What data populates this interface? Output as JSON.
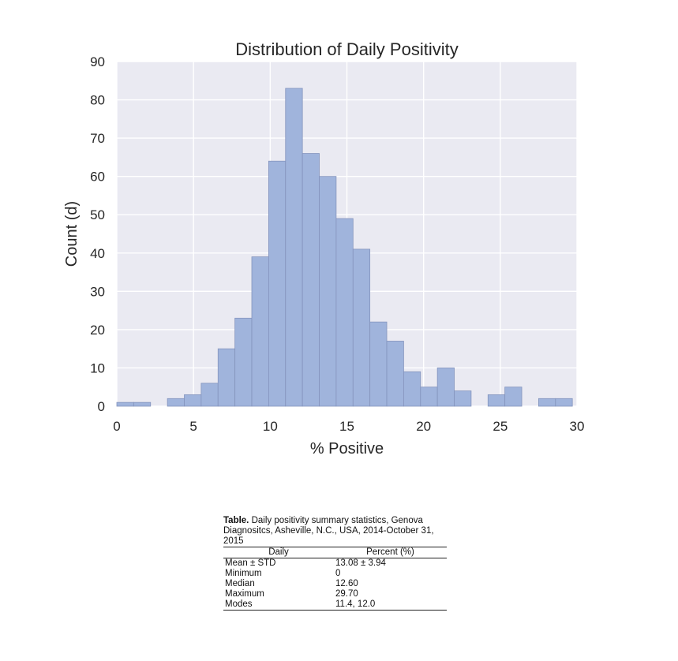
{
  "chart_data": {
    "type": "bar",
    "title": "Distribution of Daily Positivity",
    "xlabel": "% Positive",
    "ylabel": "Count (d)",
    "xlim": [
      0,
      30
    ],
    "ylim": [
      0,
      90
    ],
    "xticks": [
      0,
      5,
      10,
      15,
      20,
      25,
      30
    ],
    "yticks": [
      0,
      10,
      20,
      30,
      40,
      50,
      60,
      70,
      80,
      90
    ],
    "grid": true,
    "bar_color": "#a0b4dc",
    "background_color": "#eaeaf2",
    "bins": [
      {
        "x0": 0.0,
        "x1": 1.1,
        "count": 1
      },
      {
        "x0": 1.1,
        "x1": 2.2,
        "count": 1
      },
      {
        "x0": 3.3,
        "x1": 4.4,
        "count": 2
      },
      {
        "x0": 4.4,
        "x1": 5.5,
        "count": 3
      },
      {
        "x0": 5.5,
        "x1": 6.6,
        "count": 6
      },
      {
        "x0": 6.6,
        "x1": 7.7,
        "count": 15
      },
      {
        "x0": 7.7,
        "x1": 8.8,
        "count": 23
      },
      {
        "x0": 8.8,
        "x1": 9.9,
        "count": 39
      },
      {
        "x0": 9.9,
        "x1": 11.0,
        "count": 64
      },
      {
        "x0": 11.0,
        "x1": 12.1,
        "count": 83
      },
      {
        "x0": 12.1,
        "x1": 13.2,
        "count": 66
      },
      {
        "x0": 13.2,
        "x1": 14.3,
        "count": 60
      },
      {
        "x0": 14.3,
        "x1": 15.4,
        "count": 49
      },
      {
        "x0": 15.4,
        "x1": 16.5,
        "count": 41
      },
      {
        "x0": 16.5,
        "x1": 17.6,
        "count": 22
      },
      {
        "x0": 17.6,
        "x1": 18.7,
        "count": 17
      },
      {
        "x0": 18.7,
        "x1": 19.8,
        "count": 9
      },
      {
        "x0": 19.8,
        "x1": 20.9,
        "count": 5
      },
      {
        "x0": 20.9,
        "x1": 22.0,
        "count": 10
      },
      {
        "x0": 22.0,
        "x1": 23.1,
        "count": 4
      },
      {
        "x0": 24.2,
        "x1": 25.3,
        "count": 3
      },
      {
        "x0": 25.3,
        "x1": 26.4,
        "count": 5
      },
      {
        "x0": 27.5,
        "x1": 28.6,
        "count": 2
      },
      {
        "x0": 28.6,
        "x1": 29.7,
        "count": 2
      }
    ]
  },
  "table": {
    "caption_bold": "Table.",
    "caption_text": " Daily positivity summary statistics, Genova Diagnositcs, Asheville, N.C., USA, 2014-October 31, 2015",
    "header": [
      "Daily",
      "Percent (%)"
    ],
    "rows": [
      {
        "label": "Mean ± STD",
        "value": "13.08 ± 3.94"
      },
      {
        "label": "Minimum",
        "value": "0"
      },
      {
        "label": "Median",
        "value": "12.60"
      },
      {
        "label": "Maximum",
        "value": "29.70"
      },
      {
        "label": "Modes",
        "value": "11.4, 12.0"
      }
    ]
  }
}
